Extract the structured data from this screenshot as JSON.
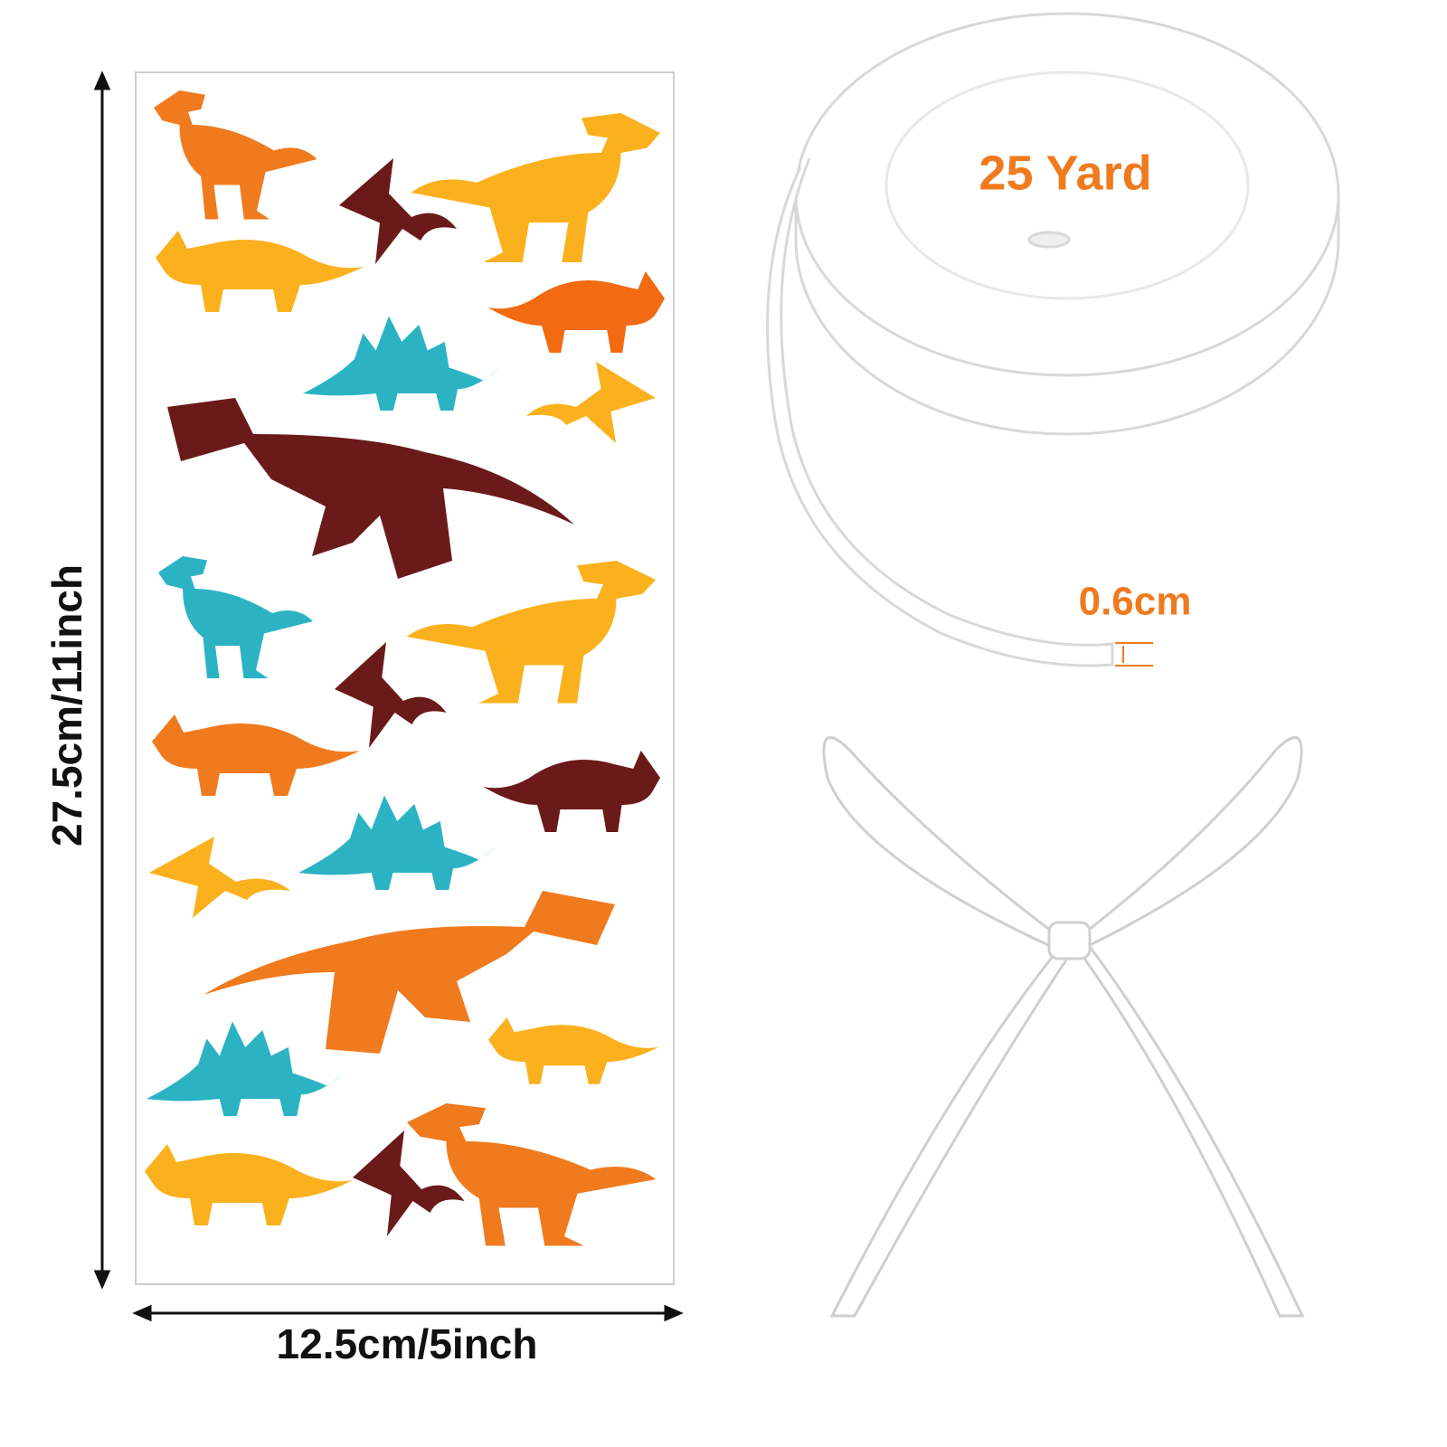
{
  "bag": {
    "height_label": "27.5cm/11inch",
    "width_label": "12.5cm/5inch"
  },
  "ribbon": {
    "length_label": "25 Yard",
    "width_label": "0.6cm"
  }
}
